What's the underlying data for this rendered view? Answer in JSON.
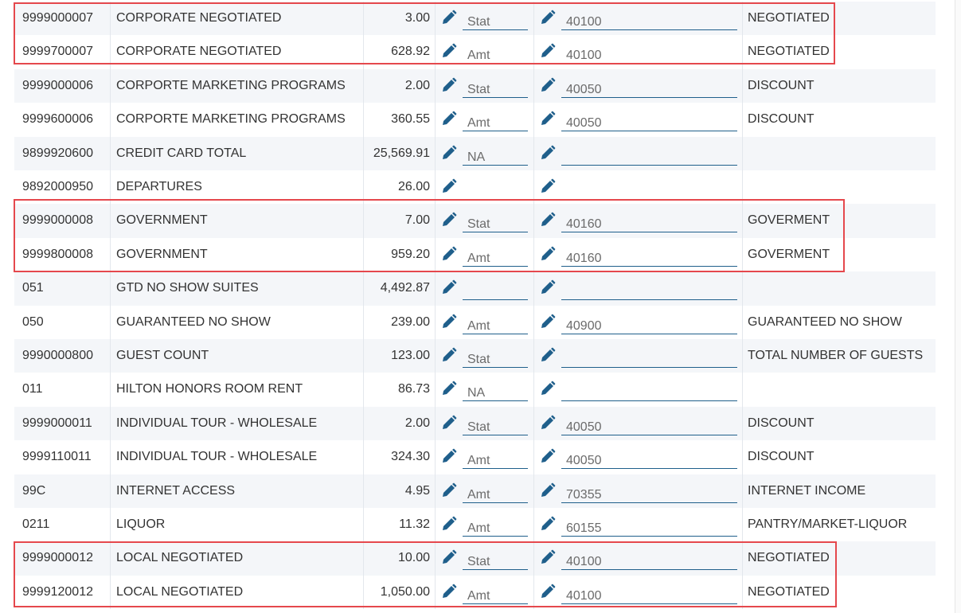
{
  "table": {
    "rows": [
      {
        "code": "9999000007",
        "description": "CORPORATE NEGOTIATED",
        "amount": "3.00",
        "type": "Stat",
        "account": "40100",
        "category": "NEGOTIATED"
      },
      {
        "code": "9999700007",
        "description": "CORPORATE NEGOTIATED",
        "amount": "628.92",
        "type": "Amt",
        "account": "40100",
        "category": "NEGOTIATED"
      },
      {
        "code": "9999000006",
        "description": "CORPORTE MARKETING PROGRAMS",
        "amount": "2.00",
        "type": "Stat",
        "account": "40050",
        "category": "DISCOUNT"
      },
      {
        "code": "9999600006",
        "description": "CORPORTE MARKETING PROGRAMS",
        "amount": "360.55",
        "type": "Amt",
        "account": "40050",
        "category": "DISCOUNT"
      },
      {
        "code": "9899920600",
        "description": "CREDIT CARD TOTAL",
        "amount": "25,569.91",
        "type": "NA"
      },
      {
        "code": "9892000950",
        "description": "DEPARTURES",
        "amount": "26.00"
      },
      {
        "code": "9999000008",
        "description": "GOVERNMENT",
        "amount": "7.00",
        "type": "Stat",
        "account": "40160",
        "category": "GOVERMENT"
      },
      {
        "code": "9999800008",
        "description": "GOVERNMENT",
        "amount": "959.20",
        "type": "Amt",
        "account": "40160",
        "category": "GOVERMENT"
      },
      {
        "code": "051",
        "description": "GTD NO SHOW SUITES",
        "amount": "4,492.87"
      },
      {
        "code": "050",
        "description": "GUARANTEED NO SHOW",
        "amount": "239.00",
        "type": "Amt",
        "account": "40900",
        "category": "GUARANTEED NO SHOW"
      },
      {
        "code": "9990000800",
        "description": "GUEST COUNT",
        "amount": "123.00",
        "type": "Stat",
        "category": "TOTAL NUMBER OF GUESTS"
      },
      {
        "code": "011",
        "description": "HILTON HONORS ROOM RENT",
        "amount": "86.73",
        "type": "NA"
      },
      {
        "code": "9999000011",
        "description": "INDIVIDUAL TOUR - WHOLESALE",
        "amount": "2.00",
        "type": "Stat",
        "account": "40050",
        "category": "DISCOUNT"
      },
      {
        "code": "9999110011",
        "description": "INDIVIDUAL TOUR - WHOLESALE",
        "amount": "324.30",
        "type": "Amt",
        "account": "40050",
        "category": "DISCOUNT"
      },
      {
        "code": "99C",
        "description": "INTERNET ACCESS",
        "amount": "4.95",
        "type": "Amt",
        "account": "70355",
        "category": "INTERNET INCOME"
      },
      {
        "code": "0211",
        "description": "LIQUOR",
        "amount": "11.32",
        "type": "Amt",
        "account": "60155",
        "category": "PANTRY/MARKET-LIQUOR"
      },
      {
        "code": "9999000012",
        "description": "LOCAL NEGOTIATED",
        "amount": "10.00",
        "type": "Stat",
        "account": "40100",
        "category": "NEGOTIATED"
      },
      {
        "code": "9999120012",
        "description": "LOCAL NEGOTIATED",
        "amount": "1,050.00",
        "type": "Amt",
        "account": "40100",
        "category": "NEGOTIATED"
      }
    ]
  }
}
